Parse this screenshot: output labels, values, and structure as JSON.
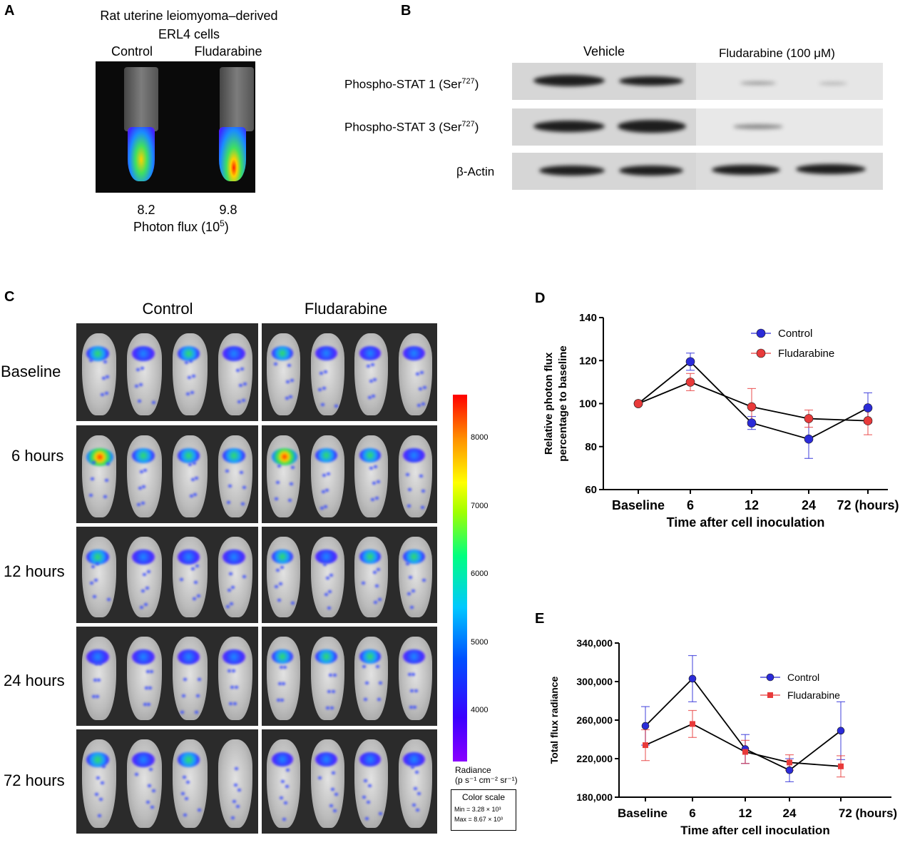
{
  "panelA": {
    "label": "A",
    "title_line1": "Rat uterine leiomyoma–derived",
    "title_line2": "ERL4 cells",
    "col_control": "Control",
    "col_fludarabine": "Fludarabine",
    "value_control": "8.2",
    "value_fludarabine": "9.8",
    "flux_label": "Photon flux (10",
    "flux_exp": "5",
    "flux_close": ")"
  },
  "panelB": {
    "label": "B",
    "col_vehicle": "Vehicle",
    "col_fludarabine": "Fludarabine (100 μM)",
    "rows": [
      {
        "name": "Phospho-STAT 1 (Ser",
        "sup": "727",
        "close": ")"
      },
      {
        "name": "Phospho-STAT 3 (Ser",
        "sup": "727",
        "close": ")"
      },
      {
        "name": "β-Actin",
        "sup": "",
        "close": ""
      }
    ]
  },
  "panelC": {
    "label": "C",
    "col_control": "Control",
    "col_fludarabine": "Fludarabine",
    "rows": [
      "Baseline",
      "6 hours",
      "12 hours",
      "24 hours",
      "72 hours"
    ],
    "colorbar_ticks": [
      "8000",
      "7000",
      "6000",
      "5000",
      "4000"
    ],
    "radiance_label": "Radiance",
    "radiance_units": "(p s⁻¹ cm⁻² sr⁻¹)",
    "scale_title": "Color scale",
    "scale_min": "Min = 3.28 × 10³",
    "scale_max": "Max = 8.67 × 10³"
  },
  "chart_data": [
    {
      "id": "D",
      "type": "line",
      "panel_label": "D",
      "categories": [
        "Baseline",
        "6",
        "12",
        "24",
        "72 (hours)"
      ],
      "xlabel": "Time after cell inoculation",
      "ylabel_line1": "Relative photon flux",
      "ylabel_line2": "percentage to baseline",
      "ylim": [
        60,
        140
      ],
      "yticks": [
        "60",
        "80",
        "100",
        "120",
        "140"
      ],
      "legend_position": "top-right",
      "series": [
        {
          "name": "Control",
          "color": "#2b2bd8",
          "marker": "circle",
          "values": [
            100,
            119.5,
            91,
            83.5,
            98
          ],
          "err": [
            0,
            4,
            3,
            9,
            7
          ]
        },
        {
          "name": "Fludarabine",
          "color": "#e83a3a",
          "marker": "circle",
          "values": [
            100,
            110,
            98.5,
            93,
            92
          ],
          "err": [
            0,
            4,
            8.5,
            4,
            6.5
          ]
        }
      ]
    },
    {
      "id": "E",
      "type": "line",
      "panel_label": "E",
      "categories": [
        "Baseline",
        "6",
        "12",
        "24",
        "72 (hours)"
      ],
      "xlabel": "Time after cell inoculation",
      "ylabel_line1": "Total flux radiance",
      "ylabel_line2": "",
      "ylim": [
        180000,
        340000
      ],
      "yticks": [
        "180,000",
        "220,000",
        "260,000",
        "300,000",
        "340,000"
      ],
      "legend_position": "top-right",
      "series": [
        {
          "name": "Control",
          "color": "#2b2bd8",
          "marker": "circle",
          "values": [
            254000,
            303000,
            230000,
            208000,
            249000
          ],
          "err": [
            20000,
            24000,
            15000,
            12000,
            30000
          ]
        },
        {
          "name": "Fludarabine",
          "color": "#e83a3a",
          "marker": "square",
          "values": [
            234000,
            256000,
            227000,
            216000,
            212000
          ],
          "err": [
            16000,
            14000,
            12000,
            8000,
            11000
          ]
        }
      ]
    }
  ]
}
